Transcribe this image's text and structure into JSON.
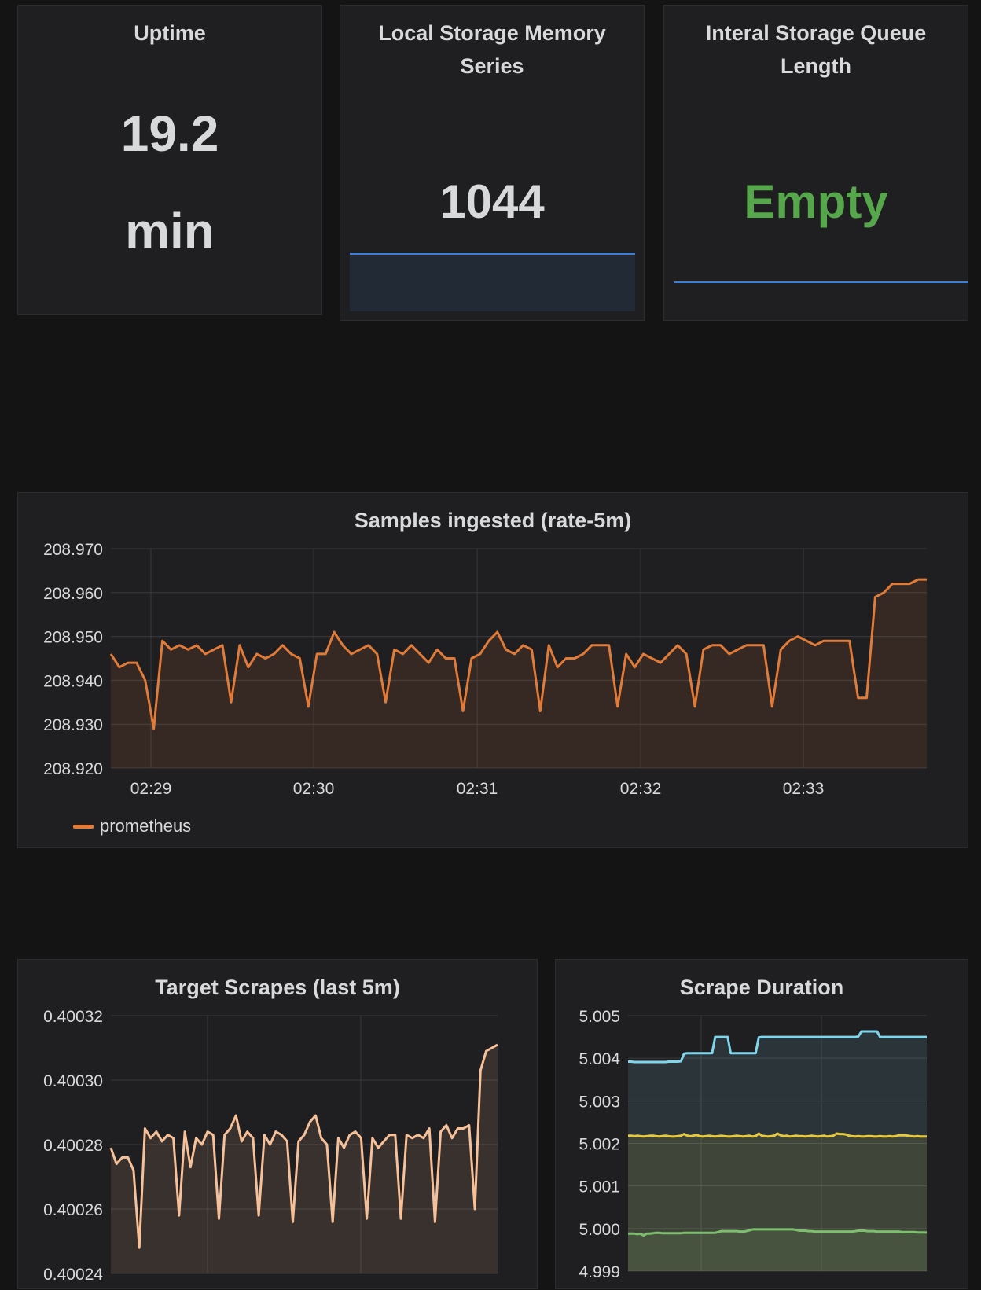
{
  "panels": {
    "uptime": {
      "title": "Uptime",
      "value": "19.2",
      "unit": "min"
    },
    "memory_series": {
      "title_line1": "Local Storage Memory",
      "title_line2": "Series",
      "value": "1044"
    },
    "queue_length": {
      "title_line1": "Interal Storage Queue",
      "title_line2": "Length",
      "value": "Empty",
      "value_color": "#56a64b"
    },
    "samples": {
      "title": "Samples ingested (rate-5m)",
      "legend_label": "prometheus"
    },
    "scrapes": {
      "title": "Target Scrapes (last 5m)"
    },
    "duration": {
      "title": "Scrape Duration"
    }
  },
  "colors": {
    "background": "#141414",
    "panel": "#1f1e20",
    "sparkline": "#3d7fd8",
    "orange": "#e07b39",
    "peach": "#f6c098",
    "cyan": "#7fd6ec",
    "yellow": "#e6c93c",
    "green": "#7ebf6f"
  },
  "chart_data": [
    {
      "type": "line",
      "title": "Samples ingested (rate-5m)",
      "x_ticks": [
        "02:29",
        "02:30",
        "02:31",
        "02:32",
        "02:33"
      ],
      "y_ticks": [
        "208.920",
        "208.930",
        "208.940",
        "208.950",
        "208.960",
        "208.970"
      ],
      "ylim": [
        208.92,
        208.97
      ],
      "legend": "bottom-left",
      "grid": true,
      "series": [
        {
          "name": "prometheus",
          "color": "#e07b39",
          "x": [
            0,
            0.05,
            0.1,
            0.15,
            0.2,
            0.25,
            0.3,
            0.35,
            0.4,
            0.45,
            0.5,
            0.55,
            0.6,
            0.65,
            0.7,
            0.75,
            0.8,
            0.85,
            0.9,
            0.95,
            1.0,
            1.05,
            1.1,
            1.15,
            1.2,
            1.25,
            1.3,
            1.35,
            1.4,
            1.45,
            1.5,
            1.55,
            1.6,
            1.65,
            1.7,
            1.75,
            1.8,
            1.85,
            1.9,
            1.95,
            2.0,
            2.05,
            2.1,
            2.15,
            2.2,
            2.25,
            2.3,
            2.35,
            2.4,
            2.45,
            2.5,
            2.55,
            2.6,
            2.65,
            2.7,
            2.75,
            2.8,
            2.85,
            2.9,
            2.95,
            3.0,
            3.05,
            3.1,
            3.15,
            3.2,
            3.25,
            3.3,
            3.35,
            3.4,
            3.45,
            3.5,
            3.55,
            3.6,
            3.65,
            3.7,
            3.75,
            3.8,
            3.85,
            3.9,
            3.95,
            4.0,
            4.05,
            4.1,
            4.15,
            4.2,
            4.25,
            4.3,
            4.35,
            4.4,
            4.45,
            4.5,
            4.55,
            4.6,
            4.65,
            4.7,
            4.75
          ],
          "y": [
            208.946,
            208.943,
            208.944,
            208.944,
            208.94,
            208.929,
            208.949,
            208.947,
            208.948,
            208.947,
            208.948,
            208.946,
            208.947,
            208.948,
            208.935,
            208.948,
            208.943,
            208.946,
            208.945,
            208.946,
            208.948,
            208.946,
            208.945,
            208.934,
            208.946,
            208.946,
            208.951,
            208.948,
            208.946,
            208.947,
            208.948,
            208.946,
            208.935,
            208.947,
            208.946,
            208.948,
            208.946,
            208.944,
            208.947,
            208.945,
            208.945,
            208.933,
            208.945,
            208.946,
            208.949,
            208.951,
            208.947,
            208.946,
            208.948,
            208.947,
            208.933,
            208.948,
            208.943,
            208.945,
            208.945,
            208.946,
            208.948,
            208.948,
            208.948,
            208.934,
            208.946,
            208.943,
            208.946,
            208.945,
            208.944,
            208.946,
            208.948,
            208.946,
            208.934,
            208.947,
            208.948,
            208.948,
            208.946,
            208.947,
            208.948,
            208.948,
            208.948,
            208.934,
            208.947,
            208.949,
            208.95,
            208.949,
            208.948,
            208.949,
            208.949,
            208.949,
            208.949,
            208.936,
            208.936,
            208.959,
            208.96,
            208.962,
            208.962,
            208.962,
            208.963,
            208.963
          ]
        }
      ]
    },
    {
      "type": "line",
      "title": "Target Scrapes (last 5m)",
      "y_ticks": [
        "0.40024",
        "0.40026",
        "0.40028",
        "0.40030",
        "0.40032"
      ],
      "ylim": [
        0.40024,
        0.40032
      ],
      "grid": true,
      "series": [
        {
          "color": "#f6c098",
          "y": [
            0.400279,
            0.400274,
            0.400276,
            0.400276,
            0.400272,
            0.400248,
            0.400285,
            0.400282,
            0.400284,
            0.400281,
            0.400283,
            0.400282,
            0.400258,
            0.400284,
            0.400273,
            0.400282,
            0.40028,
            0.400284,
            0.400283,
            0.400257,
            0.400283,
            0.400285,
            0.400289,
            0.400281,
            0.400284,
            0.400282,
            0.400258,
            0.400283,
            0.40028,
            0.400284,
            0.400283,
            0.400281,
            0.400256,
            0.400281,
            0.400283,
            0.400287,
            0.400289,
            0.400282,
            0.40028,
            0.400256,
            0.400282,
            0.400279,
            0.400283,
            0.400284,
            0.400282,
            0.400257,
            0.400282,
            0.400279,
            0.400281,
            0.400283,
            0.400283,
            0.400257,
            0.400283,
            0.400282,
            0.400283,
            0.400282,
            0.400285,
            0.400256,
            0.400284,
            0.400286,
            0.400282,
            0.400285,
            0.400285,
            0.400286,
            0.40026,
            0.400303,
            0.400309,
            0.40031,
            0.400311
          ]
        }
      ]
    },
    {
      "type": "area",
      "title": "Scrape Duration",
      "y_ticks": [
        "4.999",
        "5.000",
        "5.001",
        "5.002",
        "5.003",
        "5.004",
        "5.005"
      ],
      "ylim": [
        4.999,
        5.005
      ],
      "grid": true,
      "series": [
        {
          "color": "#7fd6ec",
          "y": [
            5.00392,
            5.00392,
            5.00391,
            5.00391,
            5.00391,
            5.00391,
            5.00391,
            5.00391,
            5.00391,
            5.00391,
            5.00391,
            5.00391,
            5.00391,
            5.00392,
            5.00392,
            5.00392,
            5.00392,
            5.00393,
            5.00411,
            5.00412,
            5.00412,
            5.00412,
            5.00412,
            5.00412,
            5.00412,
            5.00412,
            5.00412,
            5.00412,
            5.0045,
            5.0045,
            5.0045,
            5.0045,
            5.0045,
            5.00412,
            5.00412,
            5.00412,
            5.00412,
            5.00412,
            5.00412,
            5.00412,
            5.00412,
            5.00412,
            5.00449,
            5.0045,
            5.0045,
            5.0045,
            5.0045,
            5.0045,
            5.0045,
            5.0045,
            5.0045,
            5.0045,
            5.0045,
            5.0045,
            5.0045,
            5.0045,
            5.0045,
            5.0045,
            5.0045,
            5.0045,
            5.0045,
            5.0045,
            5.0045,
            5.0045,
            5.0045,
            5.0045,
            5.0045,
            5.0045,
            5.0045,
            5.0045,
            5.0045,
            5.0045,
            5.0045,
            5.0045,
            5.00451,
            5.00463,
            5.00463,
            5.00463,
            5.00463,
            5.00463,
            5.00463,
            5.0045,
            5.0045,
            5.0045,
            5.0045,
            5.0045,
            5.0045,
            5.0045,
            5.0045,
            5.0045,
            5.0045,
            5.0045,
            5.0045,
            5.0045,
            5.0045,
            5.0045,
            5.0045
          ]
        },
        {
          "color": "#e6c93c",
          "y": [
            5.00218,
            5.00218,
            5.00217,
            5.00218,
            5.00217,
            5.00216,
            5.00217,
            5.00218,
            5.00218,
            5.00217,
            5.00216,
            5.00217,
            5.00218,
            5.00217,
            5.00216,
            5.00216,
            5.00217,
            5.00218,
            5.00222,
            5.00218,
            5.00217,
            5.00218,
            5.0022,
            5.00217,
            5.00216,
            5.00217,
            5.00218,
            5.00217,
            5.00216,
            5.00217,
            5.00218,
            5.00217,
            5.00216,
            5.00216,
            5.00217,
            5.00218,
            5.00217,
            5.00216,
            5.00217,
            5.00218,
            5.00216,
            5.00217,
            5.00223,
            5.00218,
            5.00217,
            5.00216,
            5.00217,
            5.00218,
            5.00223,
            5.00219,
            5.00217,
            5.00218,
            5.00216,
            5.00217,
            5.00218,
            5.00217,
            5.00217,
            5.00216,
            5.00217,
            5.00218,
            5.00217,
            5.00216,
            5.00217,
            5.00218,
            5.00216,
            5.00217,
            5.00218,
            5.00223,
            5.00222,
            5.00222,
            5.00221,
            5.00218,
            5.00217,
            5.00216,
            5.00217,
            5.00216,
            5.00216,
            5.00217,
            5.00217,
            5.00216,
            5.00216,
            5.00217,
            5.00216,
            5.00216,
            5.00217,
            5.00216,
            5.00217,
            5.00219,
            5.00219,
            5.00219,
            5.00218,
            5.00217,
            5.00216,
            5.00217,
            5.00216,
            5.00216,
            5.00216
          ]
        },
        {
          "color": "#7ebf6f",
          "y": [
            4.99988,
            4.99988,
            4.99988,
            4.99987,
            4.99988,
            4.99984,
            4.99988,
            4.99988,
            4.99989,
            4.9999,
            4.9999,
            4.99989,
            4.99989,
            4.99989,
            4.99989,
            4.99989,
            4.99989,
            4.99989,
            4.9999,
            4.9999,
            4.9999,
            4.9999,
            4.9999,
            4.9999,
            4.9999,
            4.9999,
            4.9999,
            4.9999,
            4.9999,
            4.99992,
            4.99994,
            4.99994,
            4.99994,
            4.99994,
            4.99994,
            4.99994,
            4.99993,
            4.99993,
            4.99994,
            4.99996,
            4.99998,
            4.99998,
            4.99998,
            4.99998,
            4.99998,
            4.99998,
            4.99998,
            4.99998,
            4.99998,
            4.99998,
            4.99998,
            4.99998,
            4.99998,
            4.99998,
            4.99997,
            4.99995,
            4.99995,
            4.99995,
            4.99994,
            4.99994,
            4.99993,
            4.99993,
            4.99993,
            4.99993,
            4.99993,
            4.99993,
            4.99993,
            4.99993,
            4.99993,
            4.99993,
            4.99993,
            4.99993,
            4.99993,
            4.99994,
            4.99995,
            4.99995,
            4.99995,
            4.99994,
            4.99994,
            4.99994,
            4.99993,
            4.99993,
            4.99993,
            4.99993,
            4.99993,
            4.99993,
            4.99993,
            4.99993,
            4.99992,
            4.99992,
            4.99992,
            4.99992,
            4.99992,
            4.99991,
            4.99991,
            4.99991,
            4.99991
          ]
        }
      ]
    }
  ]
}
